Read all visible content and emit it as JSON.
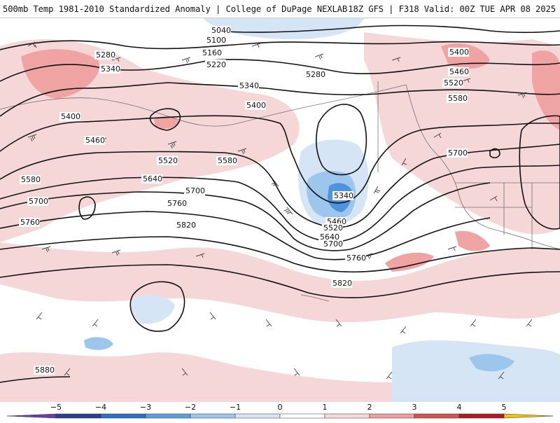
{
  "header": {
    "title": "500mb Temp 1981-2010 Standardized Anomaly | College of DuPage NEXLAB",
    "run_info": "18Z GFS | F318 Valid: 00Z TUE APR 08 2025"
  },
  "map": {
    "contour_labels": [
      "5040",
      "5100",
      "5160",
      "5220",
      "5280",
      "5340",
      "5400",
      "5460",
      "5520",
      "5580",
      "5640",
      "5700",
      "5760",
      "5820",
      "5880"
    ]
  },
  "colorbar": {
    "ticks": [
      "−5",
      "−4",
      "−3",
      "−2",
      "−1",
      "0",
      "1",
      "2",
      "3",
      "4",
      "5"
    ],
    "colors": [
      "#6a3fa0",
      "#2a3f8f",
      "#2e6fc7",
      "#5a9ee0",
      "#9cc6ec",
      "#d7e6f5",
      "#ffffff",
      "#f8d8d8",
      "#ef9e9e",
      "#d85050",
      "#b21a22",
      "#7a0d14",
      "#f4c20d"
    ]
  }
}
